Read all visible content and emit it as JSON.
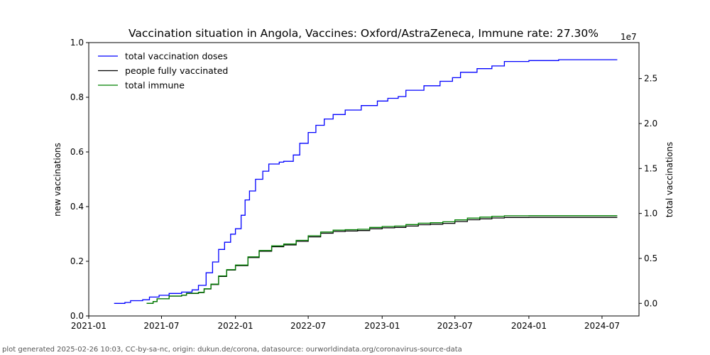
{
  "chart_data": {
    "type": "line",
    "title": "Vaccination situation in Angola, Vaccines: Oxford/AstraZeneca, Immune rate: 27.30%",
    "xlabel": "",
    "ylabel_left": "new vaccinations",
    "ylabel_right": "total vaccinations",
    "right_axis_multiplier": "1e7",
    "ylim_left": [
      0,
      1.0
    ],
    "ylim_right": [
      -1400000,
      29000000
    ],
    "xlim": [
      "2021-01-01",
      "2024-10-01"
    ],
    "x_ticks": [
      "2021-01",
      "2021-07",
      "2022-01",
      "2022-07",
      "2023-01",
      "2023-07",
      "2024-01",
      "2024-07"
    ],
    "y_ticks_left": [
      "0.0",
      "0.2",
      "0.4",
      "0.6",
      "0.8",
      "1.0"
    ],
    "y_ticks_right": [
      "0.0",
      "0.5",
      "1.0",
      "1.5",
      "2.0",
      "2.5"
    ],
    "legend_position": "top-left",
    "grid": false,
    "series": [
      {
        "name": "total vaccination doses",
        "color": "#0000ff",
        "axis": "right",
        "points": [
          [
            "2021-03-05",
            0
          ],
          [
            "2021-04-01",
            100000
          ],
          [
            "2021-04-15",
            300000
          ],
          [
            "2021-05-15",
            400000
          ],
          [
            "2021-06-01",
            700000
          ],
          [
            "2021-06-25",
            900000
          ],
          [
            "2021-07-20",
            1100000
          ],
          [
            "2021-08-20",
            1250000
          ],
          [
            "2021-09-15",
            1500000
          ],
          [
            "2021-10-01",
            2000000
          ],
          [
            "2021-10-20",
            3400000
          ],
          [
            "2021-11-05",
            4600000
          ],
          [
            "2021-11-20",
            6000000
          ],
          [
            "2021-12-05",
            6800000
          ],
          [
            "2021-12-20",
            7700000
          ],
          [
            "2022-01-01",
            8300000
          ],
          [
            "2022-01-15",
            9800000
          ],
          [
            "2022-01-25",
            11500000
          ],
          [
            "2022-02-05",
            12500000
          ],
          [
            "2022-02-20",
            13800000
          ],
          [
            "2022-03-10",
            14700000
          ],
          [
            "2022-03-25",
            15500000
          ],
          [
            "2022-04-20",
            15700000
          ],
          [
            "2022-05-01",
            15800000
          ],
          [
            "2022-05-25",
            16500000
          ],
          [
            "2022-06-10",
            17800000
          ],
          [
            "2022-07-01",
            19000000
          ],
          [
            "2022-07-20",
            19800000
          ],
          [
            "2022-08-10",
            20500000
          ],
          [
            "2022-09-01",
            21000000
          ],
          [
            "2022-10-01",
            21500000
          ],
          [
            "2022-11-10",
            22000000
          ],
          [
            "2022-12-20",
            22500000
          ],
          [
            "2023-01-15",
            22800000
          ],
          [
            "2023-02-10",
            23000000
          ],
          [
            "2023-03-01",
            23700000
          ],
          [
            "2023-04-15",
            24200000
          ],
          [
            "2023-05-25",
            24700000
          ],
          [
            "2023-06-25",
            25100000
          ],
          [
            "2023-07-15",
            25700000
          ],
          [
            "2023-08-25",
            26100000
          ],
          [
            "2023-10-01",
            26400000
          ],
          [
            "2023-11-01",
            26900000
          ],
          [
            "2024-01-01",
            27000000
          ],
          [
            "2024-03-15",
            27100000
          ],
          [
            "2024-08-08",
            27100000
          ]
        ]
      },
      {
        "name": "people fully vaccinated",
        "color": "#000000",
        "axis": "right",
        "points": [
          [
            "2021-05-25",
            0
          ],
          [
            "2021-06-10",
            200000
          ],
          [
            "2021-06-20",
            500000
          ],
          [
            "2021-07-20",
            800000
          ],
          [
            "2021-08-20",
            900000
          ],
          [
            "2021-09-01",
            1100000
          ],
          [
            "2021-10-01",
            1200000
          ],
          [
            "2021-10-15",
            1600000
          ],
          [
            "2021-11-01",
            2100000
          ],
          [
            "2021-11-20",
            3000000
          ],
          [
            "2021-12-10",
            3700000
          ],
          [
            "2022-01-01",
            4200000
          ],
          [
            "2022-02-01",
            5100000
          ],
          [
            "2022-03-01",
            5800000
          ],
          [
            "2022-04-01",
            6300000
          ],
          [
            "2022-05-01",
            6500000
          ],
          [
            "2022-06-01",
            6900000
          ],
          [
            "2022-07-01",
            7400000
          ],
          [
            "2022-08-01",
            7800000
          ],
          [
            "2022-09-01",
            8000000
          ],
          [
            "2022-10-01",
            8050000
          ],
          [
            "2022-11-01",
            8100000
          ],
          [
            "2022-12-01",
            8300000
          ],
          [
            "2023-01-01",
            8400000
          ],
          [
            "2023-02-01",
            8450000
          ],
          [
            "2023-03-01",
            8600000
          ],
          [
            "2023-04-01",
            8750000
          ],
          [
            "2023-05-01",
            8800000
          ],
          [
            "2023-06-01",
            8900000
          ],
          [
            "2023-07-01",
            9100000
          ],
          [
            "2023-08-01",
            9300000
          ],
          [
            "2023-09-01",
            9400000
          ],
          [
            "2023-10-01",
            9500000
          ],
          [
            "2023-11-01",
            9550000
          ],
          [
            "2024-01-01",
            9560000
          ],
          [
            "2024-08-08",
            9560000
          ]
        ]
      },
      {
        "name": "total immune",
        "color": "#008000",
        "axis": "right",
        "points": [
          [
            "2021-05-25",
            0
          ],
          [
            "2021-06-10",
            200000
          ],
          [
            "2021-06-20",
            500000
          ],
          [
            "2021-07-20",
            820000
          ],
          [
            "2021-08-20",
            920000
          ],
          [
            "2021-09-01",
            1130000
          ],
          [
            "2021-10-01",
            1230000
          ],
          [
            "2021-10-15",
            1630000
          ],
          [
            "2021-11-01",
            2140000
          ],
          [
            "2021-11-20",
            3050000
          ],
          [
            "2021-12-10",
            3750000
          ],
          [
            "2022-01-01",
            4260000
          ],
          [
            "2022-02-01",
            5170000
          ],
          [
            "2022-03-01",
            5880000
          ],
          [
            "2022-04-01",
            6390000
          ],
          [
            "2022-05-01",
            6600000
          ],
          [
            "2022-06-01",
            7010000
          ],
          [
            "2022-07-01",
            7520000
          ],
          [
            "2022-08-01",
            7930000
          ],
          [
            "2022-09-01",
            8140000
          ],
          [
            "2022-10-01",
            8190000
          ],
          [
            "2022-11-01",
            8240000
          ],
          [
            "2022-12-01",
            8450000
          ],
          [
            "2023-01-01",
            8550000
          ],
          [
            "2023-02-01",
            8600000
          ],
          [
            "2023-03-01",
            8760000
          ],
          [
            "2023-04-01",
            8910000
          ],
          [
            "2023-05-01",
            8970000
          ],
          [
            "2023-06-01",
            9070000
          ],
          [
            "2023-07-01",
            9280000
          ],
          [
            "2023-08-01",
            9480000
          ],
          [
            "2023-09-01",
            9590000
          ],
          [
            "2023-10-01",
            9690000
          ],
          [
            "2023-11-01",
            9740000
          ],
          [
            "2024-01-01",
            9750000
          ],
          [
            "2024-08-08",
            9750000
          ]
        ]
      }
    ]
  },
  "footer_text": "plot generated 2025-02-26 10:03, CC-by-sa-nc, origin: dukun.de/corona, datasource: ourworldindata.org/coronavirus-source-data"
}
